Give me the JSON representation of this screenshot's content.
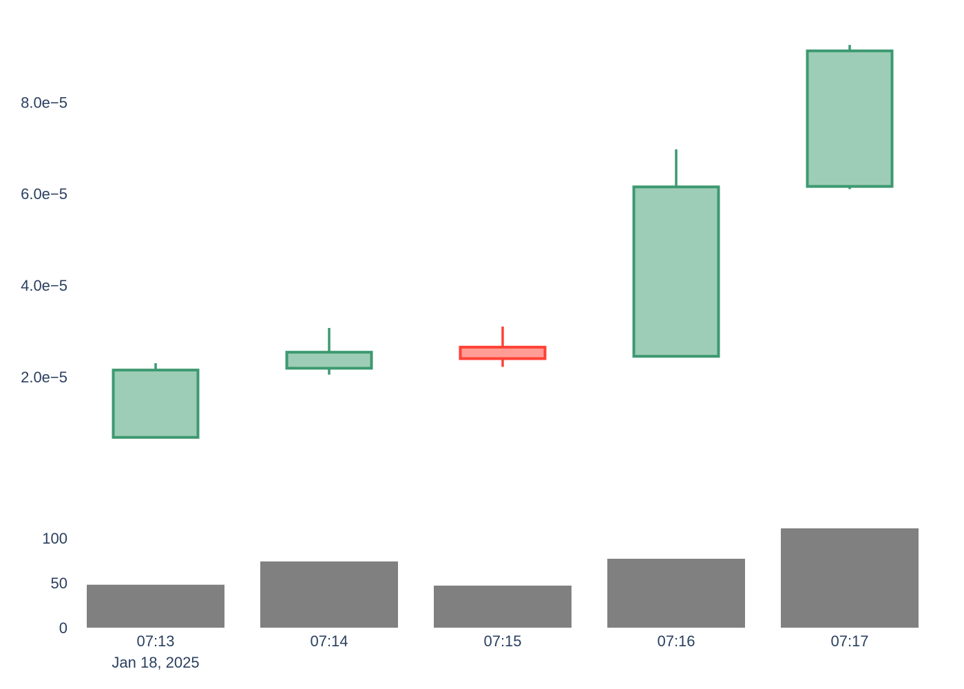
{
  "chart_data": [
    {
      "type": "candlestick",
      "categories": [
        "07:13",
        "07:14",
        "07:15",
        "07:16",
        "07:17"
      ],
      "date_label": "Jan 18, 2025",
      "open": [
        6.8e-06,
        2.19e-05,
        2.65e-05,
        2.45e-05,
        6.16e-05
      ],
      "high": [
        2.3e-05,
        3.07e-05,
        3.1e-05,
        6.97e-05,
        9.25e-05
      ],
      "low": [
        6.8e-06,
        2.05e-05,
        2.22e-05,
        2.45e-05,
        6.1e-05
      ],
      "close": [
        2.15e-05,
        2.54e-05,
        2.4e-05,
        6.15e-05,
        9.12e-05
      ],
      "ylim": [
        0.0,
        9.93e-05
      ],
      "yticks": [
        2e-05,
        4e-05,
        6e-05,
        8e-05
      ],
      "ytick_labels": [
        "2.0e−5",
        "4.0e−5",
        "6.0e−5",
        "8.0e−5"
      ],
      "increasing_color": "#3d9970",
      "increasing_fill": "#9ecdb7",
      "decreasing_color": "#ff4136",
      "decreasing_fill": "#ff9c95",
      "grid": false
    },
    {
      "type": "bar",
      "categories": [
        "07:13",
        "07:14",
        "07:15",
        "07:16",
        "07:17"
      ],
      "values": [
        48,
        74,
        47,
        77,
        111
      ],
      "ylim": [
        0,
        127
      ],
      "yticks": [
        0,
        50,
        100
      ],
      "ytick_labels": [
        "0",
        "50",
        "100"
      ],
      "color": "#808080",
      "grid": false
    }
  ]
}
